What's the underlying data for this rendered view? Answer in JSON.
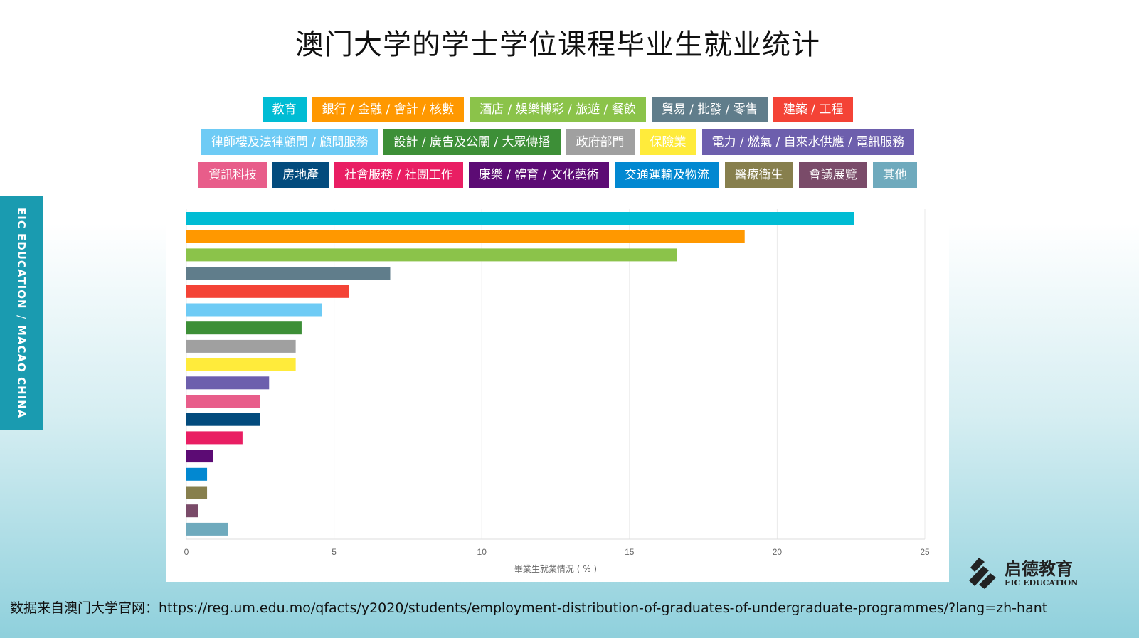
{
  "title": "澳门大学的学士学位课程毕业生就业统计",
  "side_tab": {
    "part1": "EIC EDUCATION",
    "sep": "/",
    "part2": "MACAO CHINA"
  },
  "source_text": "数据来自澳门大学官网：https://reg.um.edu.mo/qfacts/y2020/students/employment-distribution-of-graduates-of-undergraduate-programmes/?lang=zh-hant",
  "logo": {
    "cn": "启德教育",
    "en": "EIC EDUCATION"
  },
  "chart_data": {
    "type": "bar",
    "orientation": "horizontal",
    "title": "澳门大学的学士学位课程毕业生就业统计",
    "xlabel": "畢業生就業情況 ( % )",
    "ylabel": "",
    "xlim": [
      0,
      25
    ],
    "xticks": [
      "0",
      "5",
      "10",
      "15",
      "20",
      "25"
    ],
    "grid": true,
    "legend_placement": "top",
    "categories": [
      "教育",
      "銀行 / 金融 / 會計 / 核數",
      "酒店 / 娛樂博彩 / 旅遊 / 餐飲",
      "貿易 / 批發 / 零售",
      "建築 / 工程",
      "律師樓及法律顧問 / 顧問服務",
      "設計 / 廣告及公關 / 大眾傳播",
      "政府部門",
      "保險業",
      "電力 / 燃氣 / 自來水供應 / 電訊服務",
      "資訊科技",
      "房地產",
      "社會服務 / 社團工作",
      "康樂 / 體育 / 文化藝術",
      "交通運輸及物流",
      "醫療衛生",
      "會議展覽",
      "其他"
    ],
    "values": [
      22.6,
      18.9,
      16.6,
      6.9,
      5.5,
      4.6,
      3.9,
      3.7,
      3.7,
      2.8,
      2.5,
      2.5,
      1.9,
      0.9,
      0.7,
      0.7,
      0.4,
      1.4
    ],
    "colors": [
      "#00bcd4",
      "#ff9800",
      "#8bc34a",
      "#607d8b",
      "#f44336",
      "#6ecbf5",
      "#3d8f37",
      "#a0a0a0",
      "#ffeb3b",
      "#6d5fad",
      "#e85d8a",
      "#034b7d",
      "#e91e63",
      "#5c0b74",
      "#0288d1",
      "#877f4d",
      "#7a4b69",
      "#6faabd"
    ],
    "legend_rows": [
      [
        0,
        1,
        2,
        3,
        4
      ],
      [
        5,
        6,
        7,
        8,
        9
      ],
      [
        10,
        11,
        12,
        13,
        14,
        15,
        16,
        17
      ]
    ]
  }
}
